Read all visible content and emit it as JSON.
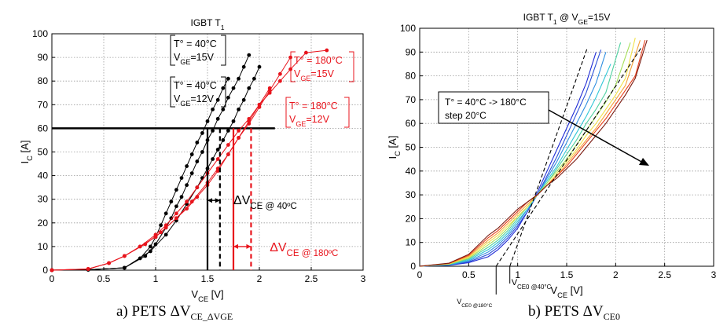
{
  "captions": {
    "a_prefix": "a) PETS ΔV",
    "a_sub": "CE_ΔVGE",
    "b_prefix": "b) PETS ΔV",
    "b_sub": "CE0"
  },
  "chart_data": [
    {
      "type": "line",
      "title": "IGBT T",
      "title_sub": "1",
      "xlabel": "V",
      "xlabel_sub": "CE",
      "xlabel_unit": " [V]",
      "ylabel": "I",
      "ylabel_sub": "C",
      "ylabel_unit": " [A]",
      "xlim": [
        0,
        3
      ],
      "ylim": [
        0,
        100
      ],
      "xticks": [
        "0",
        "0.5",
        "1",
        "1.5",
        "2",
        "2.5",
        "3"
      ],
      "yticks": [
        "0",
        "10",
        "20",
        "30",
        "40",
        "50",
        "60",
        "70",
        "80",
        "90",
        "100"
      ],
      "grid": true,
      "colors": {
        "black": "#000000",
        "red": "#e8141c"
      },
      "series": [
        {
          "color": "#000000",
          "x": [
            0,
            0.35,
            0.7,
            0.85,
            0.95,
            1.0,
            1.05,
            1.1,
            1.15,
            1.2,
            1.25,
            1.3,
            1.35,
            1.4,
            1.45,
            1.5,
            1.55,
            1.6,
            1.65,
            1.7
          ],
          "y": [
            0,
            0.2,
            1,
            5,
            10,
            14,
            19,
            24,
            29,
            34,
            39,
            44,
            49,
            54,
            58,
            63,
            68,
            72,
            77,
            81
          ]
        },
        {
          "color": "#000000",
          "x": [
            0,
            0.35,
            0.7,
            0.9,
            1.0,
            1.1,
            1.15,
            1.2,
            1.25,
            1.3,
            1.35,
            1.4,
            1.45,
            1.5,
            1.55,
            1.6,
            1.65,
            1.7,
            1.75,
            1.8,
            1.85,
            1.9
          ],
          "y": [
            0,
            0.2,
            1,
            6,
            11,
            18,
            22,
            27,
            31,
            36,
            41,
            46,
            50,
            55,
            59,
            64,
            68,
            73,
            77,
            81,
            86,
            91
          ]
        },
        {
          "color": "#000000",
          "x": [
            0,
            0.35,
            0.7,
            0.95,
            1.1,
            1.2,
            1.3,
            1.4,
            1.45,
            1.5,
            1.55,
            1.6,
            1.65,
            1.7,
            1.75,
            1.8,
            1.85,
            1.9,
            1.95,
            2.0
          ],
          "y": [
            0,
            0.2,
            1,
            8,
            15,
            21,
            28,
            35,
            39,
            43,
            47,
            51,
            55,
            59,
            63,
            68,
            72,
            77,
            81,
            86
          ]
        },
        {
          "color": "#e8141c",
          "x": [
            0,
            0.35,
            0.55,
            0.7,
            0.85,
            1.0,
            1.1,
            1.2,
            1.3,
            1.4,
            1.5,
            1.6,
            1.7,
            1.8,
            1.9,
            2.0,
            2.1,
            2.2,
            2.3,
            2.45,
            2.65
          ],
          "y": [
            0,
            0.5,
            3,
            6,
            10,
            15,
            19,
            24,
            29,
            35,
            41,
            47,
            53,
            59,
            64,
            70,
            75,
            80,
            85,
            92,
            93
          ]
        },
        {
          "color": "#e8141c",
          "x": [
            0,
            0.35,
            0.55,
            0.7,
            0.85,
            1.0,
            1.1,
            1.2,
            1.3,
            1.4,
            1.5,
            1.6,
            1.7,
            1.8,
            1.9,
            2.0,
            2.1,
            2.2,
            2.3
          ],
          "y": [
            0,
            0.5,
            3,
            6,
            10,
            14,
            18,
            22,
            26,
            31,
            36,
            42,
            49,
            56,
            62,
            69,
            76,
            83,
            90
          ]
        },
        {
          "color": "#e8141c",
          "x": [
            0,
            0.35,
            0.55,
            0.7,
            0.9,
            1.05,
            1.2,
            1.35,
            1.5,
            1.6,
            1.7,
            1.8,
            1.9,
            2.0,
            2.1
          ],
          "y": [
            0,
            0.5,
            3,
            6,
            11,
            16,
            22,
            29,
            37,
            43,
            49,
            56,
            63,
            70,
            77
          ]
        }
      ],
      "annotations": {
        "box1_line1": "T° = 40°C",
        "box1_line2_main": "V",
        "box1_line2_sub": "GE",
        "box1_line2_value": "=15V",
        "box2_line1": "T° = 40°C",
        "box2_line2_main": "V",
        "box2_line2_sub": "GE",
        "box2_line2_value": "=12V",
        "box3_line1": "T° = 180°C",
        "box3_line2_main": "V",
        "box3_line2_sub": "GE",
        "box3_line2_value": "=15V",
        "box4_line1": "T° = 180°C",
        "box4_line2_main": "V",
        "box4_line2_sub": "GE",
        "box4_line2_value": "=12V",
        "delta40_main": "ΔV",
        "delta40_sub": "CE @ 40ºC",
        "delta180_main": "ΔV",
        "delta180_sub": "CE @ 180ºC",
        "ref_current": 60,
        "ref_x_end": 2.15,
        "v40_15": 1.5,
        "v40_12": 1.62,
        "v180_15": 1.75,
        "v180_12": 1.92
      }
    },
    {
      "type": "line",
      "title": "IGBT T",
      "title_sub": "1",
      "title_mid": " @ V",
      "title_sub2": "GE",
      "title_end": "=15V",
      "xlabel": "V",
      "xlabel_sub": "CE",
      "xlabel_unit": " [V]",
      "ylabel": "I",
      "ylabel_sub": "C",
      "ylabel_unit": " [A]",
      "xlim": [
        0,
        3
      ],
      "ylim": [
        0,
        100
      ],
      "xticks": [
        "0",
        "0.5",
        "1",
        "1.5",
        "2",
        "2.5",
        "3"
      ],
      "yticks": [
        "0",
        "10",
        "20",
        "30",
        "40",
        "50",
        "60",
        "70",
        "80",
        "90",
        "100"
      ],
      "grid": true,
      "series": [
        {
          "color": "#1f2bd6",
          "x": [
            0,
            0.3,
            0.5,
            0.7,
            0.8,
            0.9,
            1.0,
            1.1,
            1.2,
            1.3,
            1.4,
            1.5,
            1.6,
            1.7,
            1.8
          ],
          "y": [
            0,
            0.4,
            1.5,
            4,
            7,
            11,
            16,
            23,
            31,
            40,
            49,
            58,
            67,
            77,
            90
          ]
        },
        {
          "color": "#2c50d8",
          "x": [
            0,
            0.3,
            0.5,
            0.7,
            0.8,
            0.9,
            1.0,
            1.1,
            1.2,
            1.3,
            1.4,
            1.5,
            1.6,
            1.7,
            1.85
          ],
          "y": [
            0,
            0.5,
            1.8,
            5,
            8,
            12,
            17,
            23,
            30,
            38,
            46,
            55,
            64,
            73,
            91
          ]
        },
        {
          "color": "#2f8ee0",
          "x": [
            0,
            0.3,
            0.5,
            0.7,
            0.8,
            0.9,
            1.0,
            1.1,
            1.2,
            1.3,
            1.4,
            1.5,
            1.6,
            1.7,
            1.8,
            1.9
          ],
          "y": [
            0,
            0.6,
            2.2,
            6,
            9,
            13,
            18,
            24,
            30,
            37,
            44,
            52,
            60,
            68,
            77,
            90
          ]
        },
        {
          "color": "#2fc6d6",
          "x": [
            0,
            0.3,
            0.5,
            0.7,
            0.8,
            0.9,
            1.0,
            1.1,
            1.2,
            1.3,
            1.4,
            1.5,
            1.6,
            1.7,
            1.8,
            1.95
          ],
          "y": [
            0,
            0.7,
            2.6,
            7,
            10,
            14,
            19,
            24,
            30,
            36,
            42,
            49,
            56,
            63,
            71,
            85
          ]
        },
        {
          "color": "#4fd1a0",
          "x": [
            0,
            0.3,
            0.5,
            0.7,
            0.8,
            0.9,
            1.0,
            1.1,
            1.2,
            1.3,
            1.4,
            1.5,
            1.6,
            1.7,
            1.8,
            1.9,
            2.05
          ],
          "y": [
            0,
            0.8,
            3,
            8,
            11,
            15,
            20,
            25,
            30,
            35,
            41,
            47,
            53,
            60,
            66,
            73,
            94
          ]
        },
        {
          "color": "#a6e05a",
          "x": [
            0,
            0.3,
            0.5,
            0.7,
            0.8,
            0.9,
            1.0,
            1.1,
            1.2,
            1.3,
            1.4,
            1.5,
            1.6,
            1.7,
            1.8,
            1.9,
            2.0,
            2.15
          ],
          "y": [
            0,
            0.9,
            3.4,
            9,
            12,
            16,
            21,
            25,
            30,
            35,
            40,
            45,
            51,
            57,
            63,
            69,
            76,
            94
          ]
        },
        {
          "color": "#f2e24a",
          "x": [
            0,
            0.3,
            0.5,
            0.7,
            0.8,
            0.9,
            1.0,
            1.1,
            1.2,
            1.3,
            1.4,
            1.5,
            1.6,
            1.7,
            1.8,
            1.9,
            2.0,
            2.1,
            2.2
          ],
          "y": [
            0,
            1,
            3.8,
            10,
            13,
            17,
            21,
            25,
            30,
            34,
            39,
            44,
            49,
            55,
            60,
            66,
            72,
            79,
            96
          ]
        },
        {
          "color": "#f4a23a",
          "x": [
            0,
            0.3,
            0.5,
            0.7,
            0.8,
            0.9,
            1.0,
            1.1,
            1.2,
            1.3,
            1.4,
            1.5,
            1.6,
            1.7,
            1.8,
            1.9,
            2.0,
            2.1,
            2.25
          ],
          "y": [
            0,
            1.1,
            4.2,
            11,
            14,
            18,
            22,
            26,
            30,
            34,
            38,
            43,
            48,
            53,
            58,
            64,
            70,
            76,
            95
          ]
        },
        {
          "color": "#e8401c",
          "x": [
            0,
            0.3,
            0.5,
            0.7,
            0.8,
            0.9,
            1.0,
            1.1,
            1.2,
            1.3,
            1.4,
            1.5,
            1.6,
            1.7,
            1.8,
            1.9,
            2.0,
            2.1,
            2.2,
            2.3
          ],
          "y": [
            0,
            1.2,
            4.6,
            12,
            15,
            19,
            23,
            27,
            30,
            34,
            38,
            42,
            47,
            52,
            57,
            62,
            68,
            74,
            80,
            95
          ]
        },
        {
          "color": "#7a1a10",
          "x": [
            0,
            0.3,
            0.5,
            0.7,
            0.8,
            0.9,
            1.0,
            1.1,
            1.2,
            1.3,
            1.4,
            1.5,
            1.6,
            1.7,
            1.8,
            1.9,
            2.0,
            2.1,
            2.2,
            2.32
          ],
          "y": [
            0,
            1.3,
            5,
            13,
            16,
            20,
            24,
            27,
            30,
            34,
            37,
            41,
            45,
            50,
            55,
            60,
            66,
            72,
            79,
            95
          ]
        }
      ],
      "annotations": {
        "box_line1": "T° = 40°C -> 180°C",
        "box_line2": "step 20°C",
        "vce0_40_main": "V",
        "vce0_40_sub": "CE0 @40°C",
        "vce0_180_main": "V",
        "vce0_180_sub": "CE0 @180°C",
        "vce0_40": 0.92,
        "vce0_180": 0.78,
        "tangent_slope_40": 116,
        "tangent_slope_180": 62
      }
    }
  ]
}
